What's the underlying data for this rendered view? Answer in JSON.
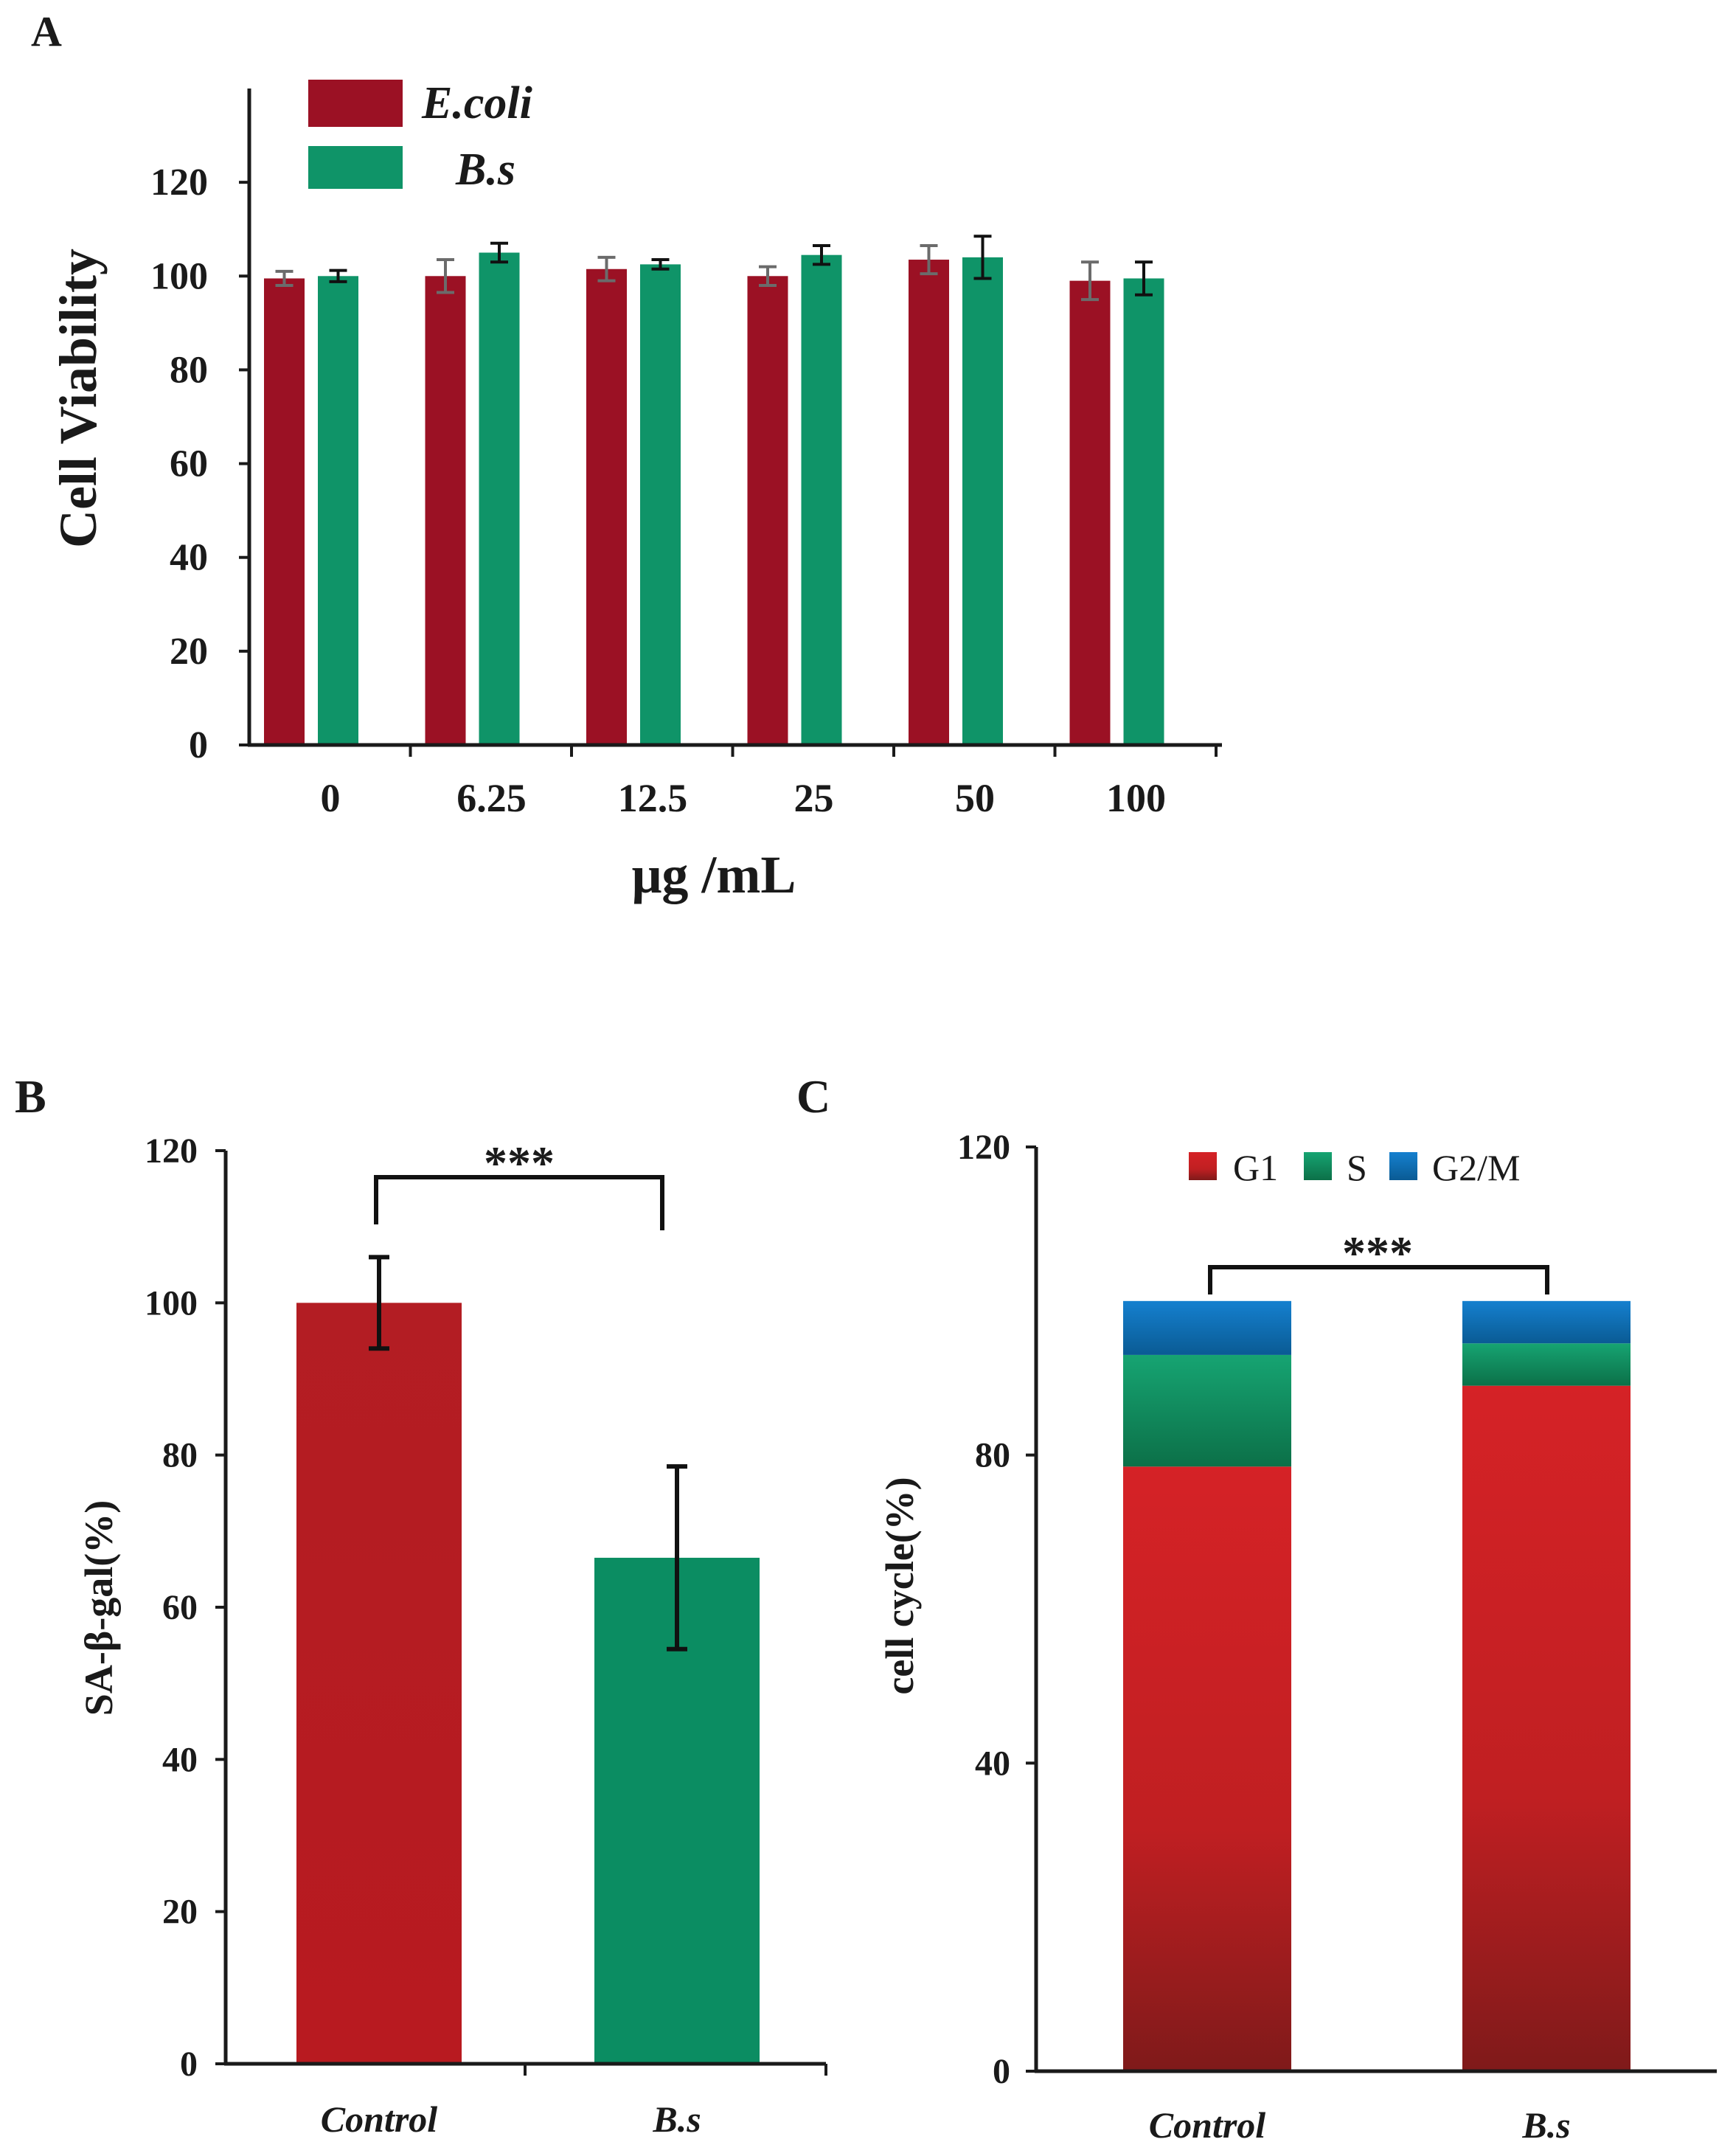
{
  "colors": {
    "ecoli": "#9b1124",
    "bs": "#0f9468",
    "control_bar": "#b41c22",
    "bs_bar": "#0b8d62",
    "g1": "#c81f22",
    "s": "#129a66",
    "g2m": "#0b6fb9",
    "axis": "#1a1a1a",
    "error_a": "#6b6b6b"
  },
  "chart_data": [
    {
      "id": "A",
      "panel_label": "A",
      "type": "bar",
      "title": "",
      "xlabel": "μg /mL",
      "ylabel": "Cell Viability",
      "ylim": [
        0,
        140
      ],
      "yticks": [
        "0",
        "20",
        "40",
        "60",
        "80",
        "100",
        "120"
      ],
      "categories": [
        "0",
        "6.25",
        "12.5",
        "25",
        "50",
        "100"
      ],
      "legend_position": "top-left",
      "series": [
        {
          "name": "E.coli",
          "values": [
            99.5,
            100,
            101.5,
            100,
            103.5,
            99
          ],
          "errors": [
            1.5,
            3.5,
            2.5,
            2,
            3,
            4
          ]
        },
        {
          "name": "B.s",
          "values": [
            100,
            105,
            102.5,
            104.5,
            104,
            99.5
          ],
          "errors": [
            1.2,
            2,
            1,
            2,
            4.5,
            3.5
          ]
        }
      ]
    },
    {
      "id": "B",
      "panel_label": "B",
      "type": "bar",
      "title": "",
      "xlabel": "",
      "ylabel": "SA-β-gal(%)",
      "ylim": [
        0,
        120
      ],
      "yticks": [
        "0",
        "20",
        "40",
        "60",
        "80",
        "100",
        "120"
      ],
      "categories": [
        "Control",
        "B.s"
      ],
      "values": [
        100,
        66.5
      ],
      "errors": [
        6,
        12
      ],
      "significance": "***"
    },
    {
      "id": "C",
      "panel_label": "C",
      "type": "bar",
      "stacked": true,
      "title": "",
      "xlabel": "",
      "ylabel": "cell cycle(%)",
      "ylim": [
        0,
        120
      ],
      "yticks": [
        "0",
        "40",
        "80",
        "120"
      ],
      "categories": [
        "Control",
        "B.s"
      ],
      "legend_position": "top",
      "series": [
        {
          "name": "G1",
          "values": [
            78.5,
            89
          ]
        },
        {
          "name": "S",
          "values": [
            14.5,
            5.5
          ]
        },
        {
          "name": "G2/M",
          "values": [
            7,
            5.5
          ]
        }
      ],
      "significance": "***"
    }
  ]
}
